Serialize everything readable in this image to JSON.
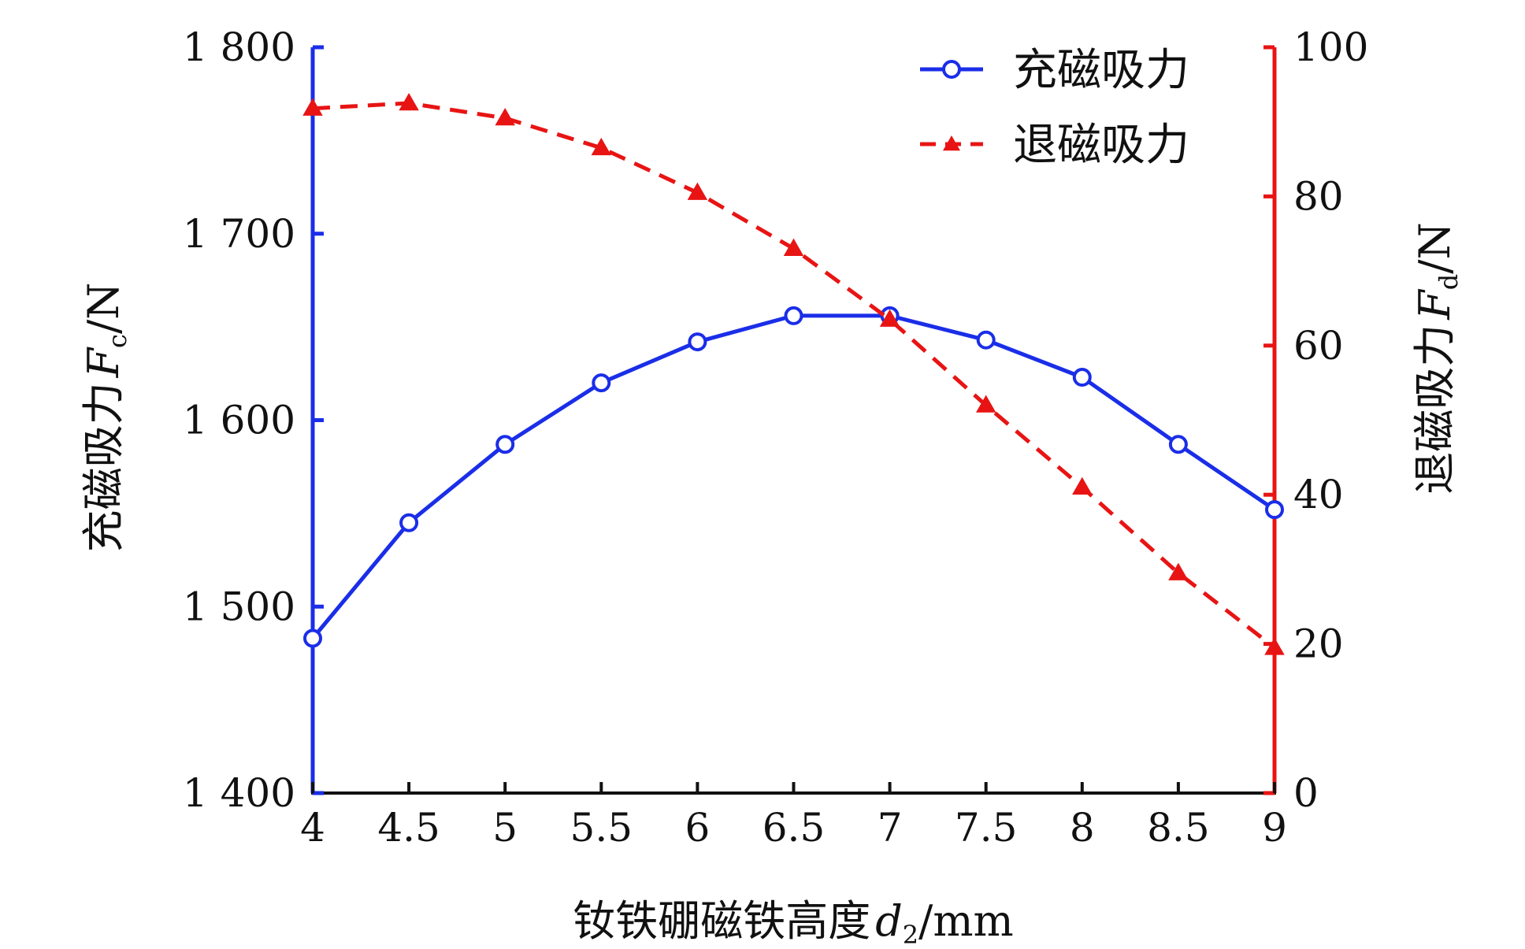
{
  "chart_data": {
    "type": "line",
    "x": [
      4,
      4.5,
      5,
      5.5,
      6,
      6.5,
      7,
      7.5,
      8,
      8.5,
      9
    ],
    "x_ticks": [
      "4",
      "4.5",
      "5",
      "5.5",
      "6",
      "6.5",
      "7",
      "7.5",
      "8",
      "8.5",
      "9"
    ],
    "xlim": [
      4,
      9
    ],
    "xlabel": {
      "text": "钕铁硼磁铁高度",
      "var": "d",
      "sub": "2",
      "unit": "/mm"
    },
    "ylabel_left": {
      "text": "充磁吸力",
      "var": "F",
      "sub": "c",
      "unit": "/N"
    },
    "ylabel_right": {
      "text": "退磁吸力",
      "var": "F",
      "sub": "d",
      "unit": "/N"
    },
    "ylim_left": [
      1400,
      1800
    ],
    "ylim_right": [
      0,
      100
    ],
    "yticks_left": [
      1400,
      1500,
      1600,
      1700,
      1800
    ],
    "yticks_left_labels": [
      "1 400",
      "1 500",
      "1 600",
      "1 700",
      "1 800"
    ],
    "yticks_right": [
      0,
      20,
      40,
      60,
      80,
      100
    ],
    "yticks_right_labels": [
      "0",
      "20",
      "40",
      "60",
      "80",
      "100"
    ],
    "legend_position": "top-right",
    "grid": false,
    "series": [
      {
        "name": "充磁吸力",
        "axis": "left",
        "color": "#1a2ee8",
        "line": "solid",
        "marker": "circle",
        "values": [
          1483,
          1545,
          1587,
          1620,
          1642,
          1656,
          1656,
          1643,
          1623,
          1587,
          1552
        ]
      },
      {
        "name": "退磁吸力",
        "axis": "right",
        "color": "#e81414",
        "line": "dashed",
        "marker": "triangle",
        "values": [
          91.8,
          92.5,
          90.5,
          86.5,
          80.5,
          73.0,
          63.5,
          52.0,
          41.0,
          29.5,
          19.5
        ]
      }
    ]
  }
}
